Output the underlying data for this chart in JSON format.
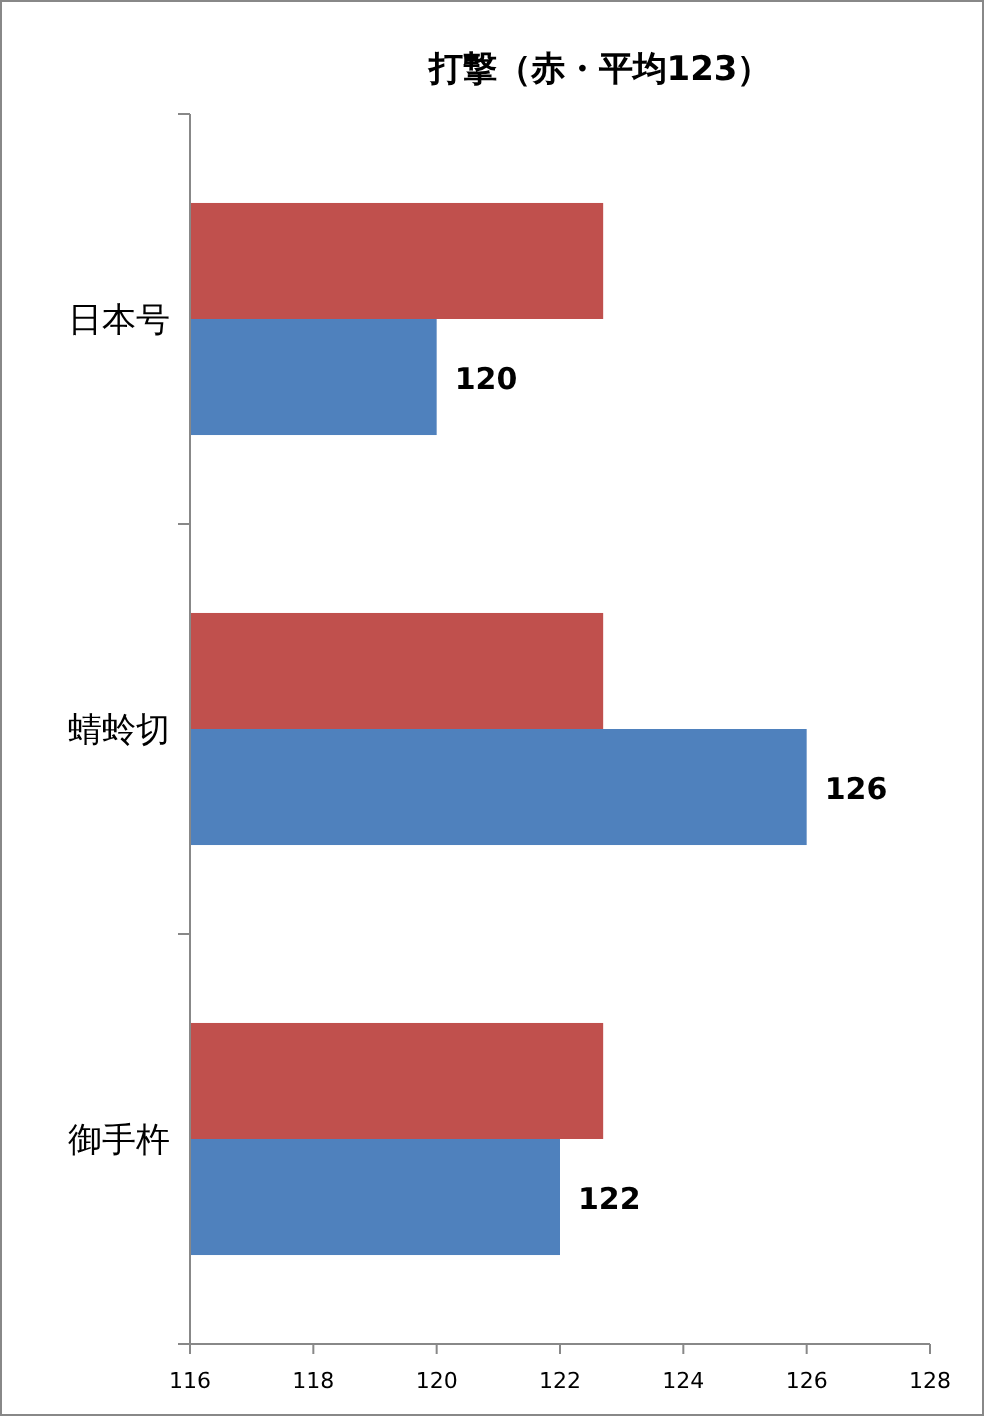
{
  "chart_data": {
    "type": "bar",
    "orientation": "horizontal",
    "title": "打撃（赤・平均123）",
    "categories": [
      "日本号",
      "蜻蛉切",
      "御手杵"
    ],
    "series": [
      {
        "color": "#c0504d",
        "values": [
          122.7,
          122.7,
          122.7
        ]
      },
      {
        "color": "#4f81bd",
        "values": [
          120,
          126,
          122
        ],
        "value_labels": [
          "120",
          "126",
          "122"
        ]
      }
    ],
    "xlim": [
      116,
      128
    ],
    "xticks": [
      116,
      118,
      120,
      122,
      124,
      126,
      128
    ]
  }
}
